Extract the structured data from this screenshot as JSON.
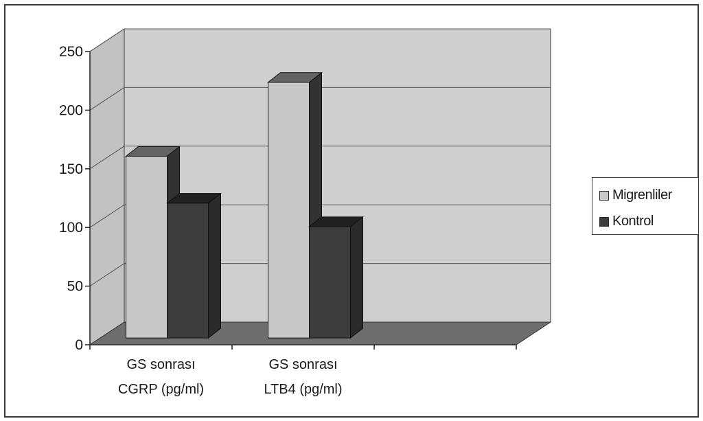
{
  "chart_data": {
    "type": "bar",
    "style": "3d-clustered",
    "categories": [
      [
        "GS sonrası",
        "CGRP (pg/ml)"
      ],
      [
        "GS sonrası",
        "LTB4 (pg/ml)"
      ],
      [
        "",
        ""
      ]
    ],
    "series": [
      {
        "name": "Migrenliler",
        "values": [
          155,
          218,
          null
        ],
        "color": "#c8c8c8"
      },
      {
        "name": "Kontrol",
        "values": [
          115,
          95,
          null
        ],
        "color": "#3c3c3c"
      }
    ],
    "ylim": [
      0,
      250
    ],
    "yticks": [
      0,
      50,
      100,
      150,
      200,
      250
    ],
    "grid": true,
    "legend_position": "right",
    "colors": {
      "wall": "#cfcfcf",
      "side_wall": "#c2c2c2",
      "floor": "#6e6e6e",
      "grid": "#555555"
    }
  },
  "legend": {
    "items": [
      {
        "label": "Migrenliler"
      },
      {
        "label": "Kontrol"
      }
    ]
  }
}
